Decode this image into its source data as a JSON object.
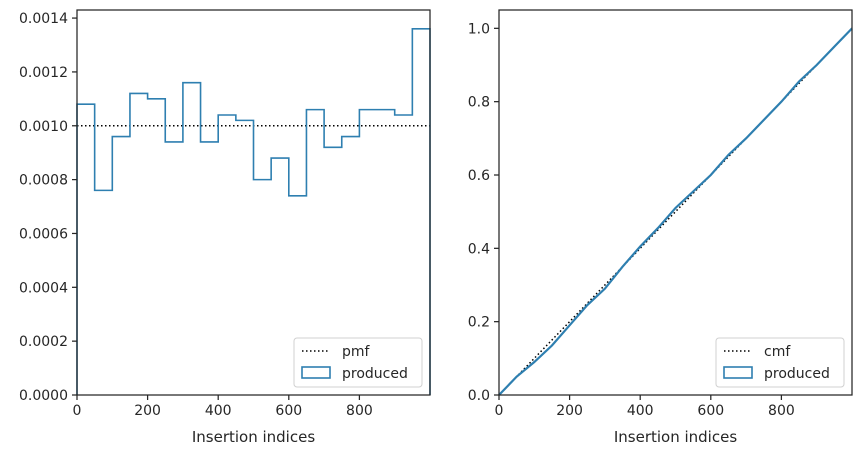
{
  "chart_data": [
    {
      "type": "step",
      "xlabel": "Insertion indices",
      "ylabel": "",
      "xlim": [
        0,
        1000
      ],
      "ylim": [
        0,
        0.00143
      ],
      "xticks": [
        "0",
        "200",
        "400",
        "600",
        "800"
      ],
      "yticks": [
        "0.0000",
        "0.0002",
        "0.0004",
        "0.0006",
        "0.0008",
        "0.0010",
        "0.0012",
        "0.0014"
      ],
      "legend_position": "lower-right",
      "series": [
        {
          "name": "pmf",
          "style": "dotted",
          "color": "#000000",
          "x": [
            0,
            1000
          ],
          "values": [
            0.001,
            0.001
          ]
        },
        {
          "name": "produced",
          "style": "step",
          "color": "#2e7fb0",
          "bin_width": 50,
          "bin_starts": [
            0,
            50,
            100,
            150,
            200,
            250,
            300,
            350,
            400,
            450,
            500,
            550,
            600,
            650,
            700,
            750,
            800,
            850,
            900,
            950
          ],
          "values": [
            0.00108,
            0.00076,
            0.00096,
            0.00112,
            0.0011,
            0.00094,
            0.00116,
            0.00094,
            0.00104,
            0.00102,
            0.0008,
            0.00088,
            0.00074,
            0.00106,
            0.00092,
            0.00096,
            0.00106,
            0.00106,
            0.00104,
            0.00136
          ]
        }
      ]
    },
    {
      "type": "line",
      "xlabel": "Insertion indices",
      "ylabel": "",
      "xlim": [
        0,
        1000
      ],
      "ylim": [
        0,
        1.05
      ],
      "xticks": [
        "0",
        "200",
        "400",
        "600",
        "800"
      ],
      "yticks": [
        "0.0",
        "0.2",
        "0.4",
        "0.6",
        "0.8",
        "1.0"
      ],
      "legend_position": "lower-right",
      "series": [
        {
          "name": "cmf",
          "style": "dotted",
          "color": "#000000",
          "x": [
            0,
            1000
          ],
          "values": [
            0,
            1
          ]
        },
        {
          "name": "produced",
          "style": "solid",
          "color": "#2e7fb0",
          "x": [
            0,
            25,
            50,
            100,
            150,
            200,
            250,
            300,
            350,
            400,
            450,
            500,
            550,
            600,
            650,
            700,
            750,
            800,
            850,
            900,
            950,
            1000
          ],
          "values": [
            0,
            0.025,
            0.05,
            0.09,
            0.135,
            0.19,
            0.245,
            0.29,
            0.35,
            0.405,
            0.455,
            0.51,
            0.555,
            0.6,
            0.655,
            0.7,
            0.75,
            0.8,
            0.855,
            0.9,
            0.95,
            1.0
          ]
        }
      ]
    }
  ]
}
